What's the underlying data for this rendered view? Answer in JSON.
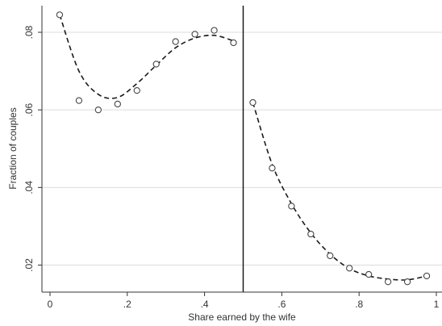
{
  "chart_data": {
    "type": "scatter",
    "xlabel": "Share earned by the wife",
    "ylabel": "Fraction of couples",
    "xlim": [
      0,
      1
    ],
    "ylim": [
      0.015,
      0.087
    ],
    "x_ticks": [
      {
        "value": 0,
        "label": "0"
      },
      {
        "value": 0.2,
        "label": ".2"
      },
      {
        "value": 0.4,
        "label": ".4"
      },
      {
        "value": 0.6,
        "label": ".6"
      },
      {
        "value": 0.8,
        "label": ".8"
      },
      {
        "value": 1,
        "label": "1"
      }
    ],
    "y_ticks": [
      {
        "value": 0.02,
        "label": ".02"
      },
      {
        "value": 0.04,
        "label": ".04"
      },
      {
        "value": 0.06,
        "label": ".06"
      },
      {
        "value": 0.08,
        "label": ".08"
      }
    ],
    "grid": "horizontal",
    "threshold_x": 0.5,
    "points": [
      {
        "x": 0.025,
        "y": 0.0845
      },
      {
        "x": 0.075,
        "y": 0.0624
      },
      {
        "x": 0.125,
        "y": 0.06
      },
      {
        "x": 0.175,
        "y": 0.0615
      },
      {
        "x": 0.225,
        "y": 0.065
      },
      {
        "x": 0.275,
        "y": 0.0718
      },
      {
        "x": 0.325,
        "y": 0.0776
      },
      {
        "x": 0.375,
        "y": 0.0795
      },
      {
        "x": 0.425,
        "y": 0.0805
      },
      {
        "x": 0.475,
        "y": 0.0773
      },
      {
        "x": 0.525,
        "y": 0.0619
      },
      {
        "x": 0.575,
        "y": 0.045
      },
      {
        "x": 0.625,
        "y": 0.0352
      },
      {
        "x": 0.675,
        "y": 0.028
      },
      {
        "x": 0.725,
        "y": 0.0224
      },
      {
        "x": 0.775,
        "y": 0.0192
      },
      {
        "x": 0.825,
        "y": 0.0176
      },
      {
        "x": 0.875,
        "y": 0.0157
      },
      {
        "x": 0.925,
        "y": 0.0157
      },
      {
        "x": 0.975,
        "y": 0.0172
      }
    ],
    "fit_left": [
      {
        "x": 0.025,
        "y": 0.0845
      },
      {
        "x": 0.075,
        "y": 0.07
      },
      {
        "x": 0.125,
        "y": 0.064
      },
      {
        "x": 0.175,
        "y": 0.0632
      },
      {
        "x": 0.225,
        "y": 0.0668
      },
      {
        "x": 0.275,
        "y": 0.0715
      },
      {
        "x": 0.325,
        "y": 0.076
      },
      {
        "x": 0.375,
        "y": 0.0785
      },
      {
        "x": 0.425,
        "y": 0.0792
      },
      {
        "x": 0.475,
        "y": 0.0778
      }
    ],
    "fit_right": [
      {
        "x": 0.525,
        "y": 0.0619
      },
      {
        "x": 0.575,
        "y": 0.046
      },
      {
        "x": 0.625,
        "y": 0.0358
      },
      {
        "x": 0.675,
        "y": 0.0283
      },
      {
        "x": 0.725,
        "y": 0.0228
      },
      {
        "x": 0.775,
        "y": 0.0191
      },
      {
        "x": 0.825,
        "y": 0.0172
      },
      {
        "x": 0.875,
        "y": 0.0164
      },
      {
        "x": 0.925,
        "y": 0.0162
      },
      {
        "x": 0.975,
        "y": 0.0172
      }
    ],
    "colors": {
      "axis": "#333333",
      "grid": "#dcdcdc",
      "marker": "#444444",
      "fit": "#1a1a1a",
      "threshold": "#111111"
    }
  }
}
